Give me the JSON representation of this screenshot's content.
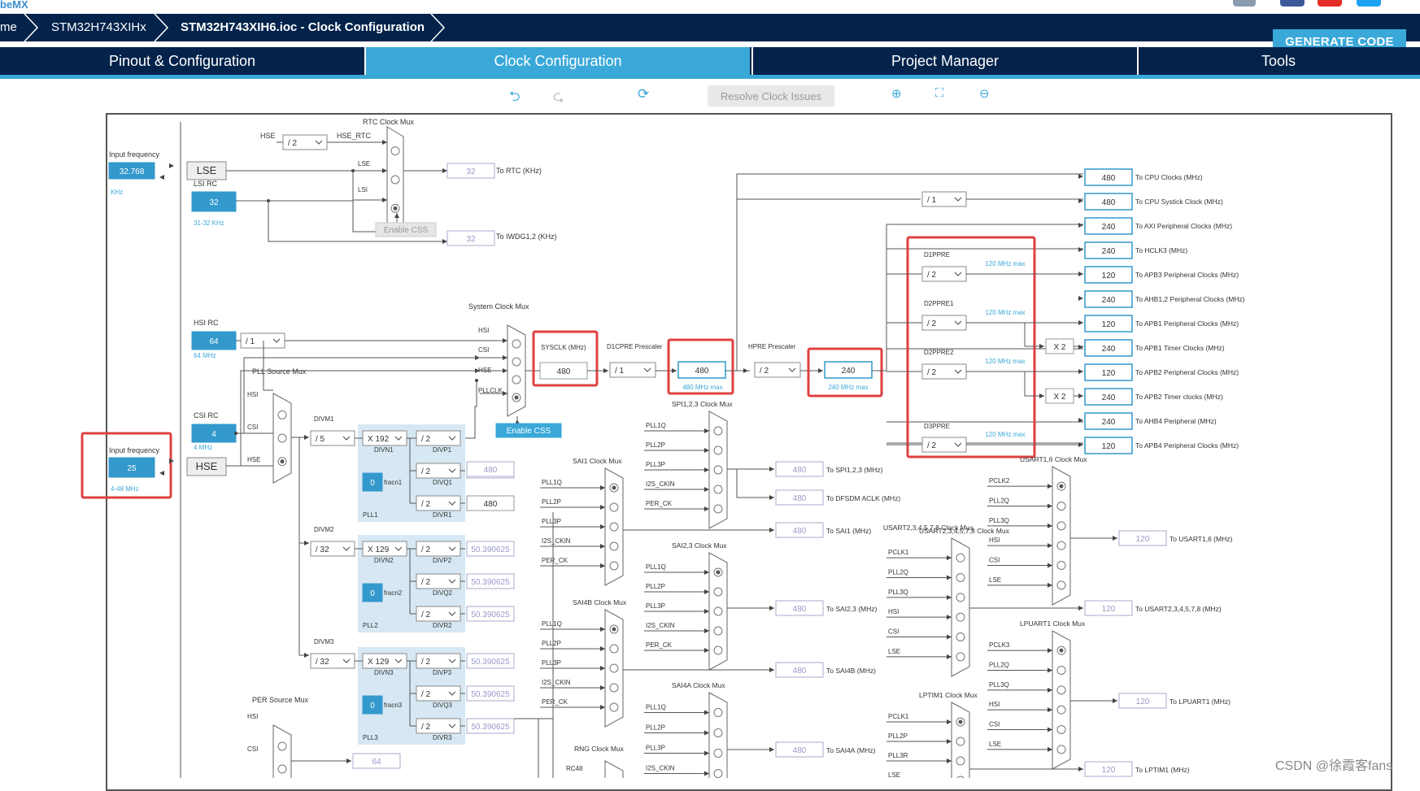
{
  "app": {
    "brand": "beMX"
  },
  "breadcrumb": {
    "home": "me",
    "device": "STM32H743XIHx",
    "file": "STM32H743XIH6.ioc - Clock Configuration"
  },
  "actions": {
    "generate": "GENERATE CODE"
  },
  "tabs": [
    {
      "label": "Pinout & Configuration",
      "active": false
    },
    {
      "label": "Clock Configuration",
      "active": true
    },
    {
      "label": "Project Manager",
      "active": false
    },
    {
      "label": "Tools",
      "active": false
    }
  ],
  "toolbar": {
    "resolve": "Resolve Clock Issues",
    "icons": [
      "undo-icon",
      "redo-icon",
      "refresh-icon",
      "zoom-in-icon",
      "fit-icon",
      "zoom-out-icon"
    ]
  },
  "colors": {
    "accent": "#3aa8d8",
    "navy": "#03234b",
    "highlight": "#e04040",
    "input": "#3399cc"
  },
  "watermark": "CSDN @徐霞客fans",
  "clock": {
    "rtc_mux": "RTC Clock Mux",
    "input_freq_label": "Input frequency",
    "lse_value": "32.768",
    "lse_unit": "KHz",
    "lse": "LSE",
    "lsi_rc": "LSI RC",
    "lsi_value": "32",
    "lsi_range": "31-32 KHz",
    "hse_rtc_in": "HSE",
    "hse_div": "/ 2",
    "hse_rtc": "HSE_RTC",
    "mux_lse": "LSE",
    "mux_lsi": "LSI",
    "enable_css": "Enable CSS",
    "to_rtc_value": "32",
    "to_rtc": "To RTC (KHz)",
    "to_iwdg_value": "32",
    "to_iwdg": "To IWDG1,2 (KHz)",
    "hsi_rc": "HSI RC",
    "hsi_value": "64",
    "hsi_unit": "64 MHz",
    "hsi_div": "/ 1",
    "csi_rc": "CSI RC",
    "csi_value": "4",
    "csi_unit": "4 MHz",
    "hse_input_value": "25",
    "hse_range": "4-48 MHz",
    "hse": "HSE",
    "sys_mux": "System Clock Mux",
    "sys_hsi": "HSI",
    "sys_csi": "CSI",
    "sys_hse": "HSE",
    "sys_pllclk": "PLLCLK",
    "sysclk_label": "SYSCLK (MHz)",
    "sysclk": "480",
    "d1cpre_label": "D1CPRE Prescaler",
    "d1cpre": "/ 1",
    "cpu_value": "480",
    "cpu_max": "480 MHz max",
    "hpre_label": "HPRE Prescaler",
    "hpre": "/ 2",
    "hclk_value": "240",
    "hclk_max": "240 MHz max",
    "systick_div": "/ 1",
    "pll_src_mux": "PLL Source Mux",
    "pll_hsi": "HSI",
    "pll_csi": "CSI",
    "pll_hse": "HSE",
    "d1ppre": "D1PPRE",
    "d2ppre1": "D2PPRE1",
    "d2ppre2": "D2PPRE2",
    "d3ppre": "D3PPRE",
    "ppre_div": "/ 2",
    "max120": "120 MHz max",
    "x2": "X 2",
    "outputs": [
      {
        "value": "480",
        "label": "To CPU Clocks (MHz)"
      },
      {
        "value": "480",
        "label": "To CPU Systick Clock (MHz)"
      },
      {
        "value": "240",
        "label": "To AXI Peripheral Clocks (MHz)"
      },
      {
        "value": "240",
        "label": "To HCLK3 (MHz)"
      },
      {
        "value": "120",
        "label": "To APB3 Peripheral Clocks (MHz)"
      },
      {
        "value": "240",
        "label": "To AHB1,2 Peripheral Clocks (MHz)"
      },
      {
        "value": "120",
        "label": "To APB1 Peripheral Clocks (MHz)"
      },
      {
        "value": "240",
        "label": "To APB1 Timer Clocks (MHz)"
      },
      {
        "value": "120",
        "label": "To APB2 Peripheral Clocks (MHz)"
      },
      {
        "value": "240",
        "label": "To APB2 Timer clocks (MHz)"
      },
      {
        "value": "240",
        "label": "To AHB4 Peripheral (MHz)"
      },
      {
        "value": "120",
        "label": "To APB4 Peripheral Clocks (MHz)"
      }
    ],
    "divm1_label": "DIVM1",
    "divm1": "/ 5",
    "divm2_label": "DIVM2",
    "divm2": "/ 32",
    "divm3_label": "DIVM3",
    "divm3": "/ 32",
    "pll1": {
      "divn": "X 192",
      "divn_label": "DIVN1",
      "fracn": "0",
      "fracn_label": "fracn1",
      "divp": "/ 2",
      "divp_label": "DIVP1",
      "divq": "/ 2",
      "divq_label": "DIVQ1",
      "divr": "/ 2",
      "divr_label": "DIVR1",
      "q_out": "480",
      "r_out": "480",
      "name": "PLL1"
    },
    "pll2": {
      "divn": "X 129",
      "divn_label": "DIVN2",
      "fracn": "0",
      "fracn_label": "fracn2",
      "divp": "/ 2",
      "divp_label": "DIVP2",
      "divq": "/ 2",
      "divq_label": "DIVQ2",
      "divr": "/ 2",
      "divr_label": "DIVR2",
      "p_out": "50.390625",
      "q_out": "50.390625",
      "r_out": "50.390625",
      "name": "PLL2"
    },
    "pll3": {
      "divn": "X 129",
      "divn_label": "DIVN3",
      "fracn": "0",
      "fracn_label": "fracn3",
      "divp": "/ 2",
      "divp_label": "DIVP3",
      "divq": "/ 2",
      "divq_label": "DIVQ3",
      "divr": "/ 2",
      "divr_label": "DIVR3",
      "p_out": "50.390625",
      "q_out": "50.390625",
      "r_out": "50.390625",
      "name": "PLL3"
    },
    "per_mux": "PER Source Mux",
    "per_hsi": "HSI",
    "per_csi": "CSI",
    "per_out": "64",
    "spi_mux": "SPI1,2,3 Clock Mux",
    "spi_inputs": [
      "PLL1Q",
      "PLL2P",
      "PLL3P",
      "I2S_CKIN",
      "PER_CK"
    ],
    "spi_value": "480",
    "spi_label": "To SPI1,2,3 (MHz)",
    "dfsdm_value": "480",
    "dfsdm_label": "To DFSDM ACLK (MHz)",
    "sai1_mux": "SAI1 Clock Mux",
    "sai1_inputs": [
      "PLL1Q",
      "PLL2P",
      "PLL3P",
      "I2S_CKIN",
      "PER_CK"
    ],
    "sai1_value": "480",
    "sai1_label": "To SAI1 (MHz)",
    "sai23_mux": "SAI2,3 Clock Mux",
    "sai23_inputs": [
      "PLL1Q",
      "PLL2P",
      "PLL3P",
      "I2S_CKIN",
      "PER_CK"
    ],
    "sai23_value": "480",
    "sai23_label": "To SAI2,3 (MHz)",
    "sai4b_mux": "SAI4B Clock Mux",
    "sai4b_inputs": [
      "PLL1Q",
      "PLL2P",
      "PLL3P",
      "I2S_CKIN",
      "PER_CK"
    ],
    "sai4b_value": "480",
    "sai4b_label": "To SAI4B (MHz)",
    "sai4a_mux": "SAI4A Clock Mux",
    "sai4a_inputs": [
      "PLL1Q",
      "PLL2P",
      "PLL3P",
      "I2S_CKIN"
    ],
    "sai4a_value": "480",
    "sai4a_label": "To SAI4A (MHz)",
    "rng_mux": "RNG Clock Mux",
    "rng_input": "RC48",
    "usart16_mux": "USART1,6 Clock Mux",
    "usart16_inputs": [
      "PCLK2",
      "PLL2Q",
      "PLL3Q",
      "HSI",
      "CSI",
      "LSE"
    ],
    "usart16_value": "120",
    "usart16_label": "To USART1,6 (MHz)",
    "usart2_mux": "USART2,3,4,5,7,8 Clock Mux",
    "usart2_inputs": [
      "PCLK1",
      "PLL2Q",
      "PLL3Q",
      "HSI",
      "CSI",
      "LSE"
    ],
    "usart2_value": "120",
    "usart2_label": "To USART2,3,4,5,7,8 (MHz)",
    "lpuart_mux": "LPUART1 Clock Mux",
    "lpuart_inputs": [
      "PCLK3",
      "PLL2Q",
      "PLL3Q",
      "HSI",
      "CSI",
      "LSE"
    ],
    "lpuart_value": "120",
    "lpuart_label": "To LPUART1 (MHz)",
    "lptim_mux": "LPTIM1 Clock Mux",
    "lptim_inputs": [
      "PCLK1",
      "PLL2P",
      "PLL3R",
      "LSE"
    ],
    "lptim_value": "120",
    "lptim_label": "To LPTIM1 (MHz)"
  }
}
